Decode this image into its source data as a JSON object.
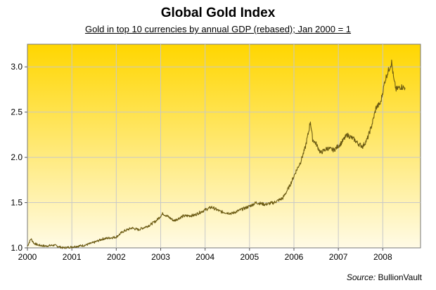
{
  "chart_data": {
    "type": "line",
    "title": "Global Gold Index",
    "subtitle": "Gold in top 10 currencies by annual GDP (rebased); Jan 2000 = 1",
    "xlabel": "",
    "ylabel": "",
    "xlim": [
      2000,
      2008.85
    ],
    "ylim": [
      1.0,
      3.25
    ],
    "x_ticks": [
      "2000",
      "2001",
      "2002",
      "2003",
      "2004",
      "2005",
      "2006",
      "2007",
      "2008"
    ],
    "y_ticks": [
      "1.0",
      "1.5",
      "2.0",
      "2.5",
      "3.0"
    ],
    "grid": true,
    "series": [
      {
        "name": "Global Gold Index",
        "x": [
          2000.0,
          2000.08,
          2000.15,
          2000.25,
          2000.4,
          2000.6,
          2000.8,
          2001.0,
          2001.3,
          2001.5,
          2001.7,
          2001.85,
          2002.0,
          2002.15,
          2002.35,
          2002.5,
          2002.75,
          2002.9,
          2003.05,
          2003.15,
          2003.3,
          2003.5,
          2003.75,
          2004.0,
          2004.15,
          2004.35,
          2004.6,
          2004.8,
          2005.0,
          2005.15,
          2005.35,
          2005.55,
          2005.75,
          2005.9,
          2006.05,
          2006.15,
          2006.25,
          2006.33,
          2006.37,
          2006.42,
          2006.5,
          2006.6,
          2006.75,
          2006.9,
          2007.05,
          2007.2,
          2007.35,
          2007.45,
          2007.55,
          2007.65,
          2007.75,
          2007.85,
          2007.95,
          2008.05,
          2008.12,
          2008.2,
          2008.25,
          2008.3,
          2008.4,
          2008.5
        ],
        "values": [
          1.02,
          1.1,
          1.05,
          1.03,
          1.02,
          1.03,
          1.0,
          1.01,
          1.03,
          1.06,
          1.1,
          1.11,
          1.12,
          1.18,
          1.22,
          1.2,
          1.25,
          1.3,
          1.38,
          1.35,
          1.3,
          1.35,
          1.36,
          1.42,
          1.45,
          1.4,
          1.38,
          1.42,
          1.46,
          1.5,
          1.48,
          1.5,
          1.55,
          1.68,
          1.85,
          1.95,
          2.1,
          2.28,
          2.4,
          2.2,
          2.15,
          2.05,
          2.1,
          2.08,
          2.15,
          2.25,
          2.2,
          2.15,
          2.12,
          2.2,
          2.35,
          2.55,
          2.6,
          2.85,
          2.95,
          3.05,
          2.85,
          2.75,
          2.78,
          2.77
        ]
      }
    ]
  },
  "source": {
    "label": "Source:",
    "value": "BullionVault"
  },
  "colors": {
    "plot_top": "#ffd600",
    "plot_bottom": "#fffbe6",
    "line": "#6b5a12",
    "grid": "#c8c8c8"
  }
}
